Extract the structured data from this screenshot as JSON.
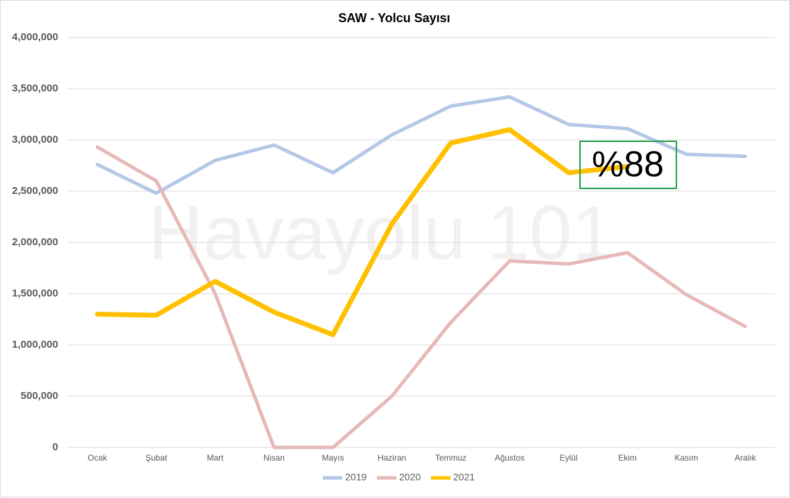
{
  "chart_data": {
    "type": "line",
    "title": "SAW - Yolcu Sayısı",
    "categories": [
      "Ocak",
      "Şubat",
      "Mart",
      "Nisan",
      "Mayıs",
      "Haziran",
      "Temmuz",
      "Ağustos",
      "Eylül",
      "Ekim",
      "Kasım",
      "Aralık"
    ],
    "series": [
      {
        "name": "2019",
        "color": "#b4c7e7",
        "values": [
          2760000,
          2480000,
          2800000,
          2950000,
          2680000,
          3050000,
          3330000,
          3420000,
          3150000,
          3110000,
          2860000,
          2840000
        ]
      },
      {
        "name": "2020",
        "color": "#e6b9b8",
        "values": [
          2930000,
          2600000,
          1500000,
          0,
          0,
          500000,
          1220000,
          1820000,
          1790000,
          1900000,
          1490000,
          1180000
        ]
      },
      {
        "name": "2021",
        "color": "#ffc000",
        "values": [
          1300000,
          1290000,
          1620000,
          1320000,
          1100000,
          2180000,
          2970000,
          3100000,
          2680000,
          2740000,
          null,
          null
        ]
      }
    ],
    "ylim": [
      0,
      4000000
    ],
    "yticks": [
      0,
      {
        "value": 500000,
        "label": "500,000"
      },
      {
        "value": 1000000,
        "label": "1,000,000"
      },
      {
        "value": 1500000,
        "label": "1,500,000"
      },
      {
        "value": 2000000,
        "label": "2,000,000"
      },
      {
        "value": 2500000,
        "label": "2,500,000"
      },
      {
        "value": 3000000,
        "label": "3,000,000"
      },
      {
        "value": 3500000,
        "label": "3,500,000"
      },
      {
        "value": 4000000,
        "label": "4,000,000"
      }
    ],
    "grid": true,
    "legend": "bottom",
    "annotations": [
      "%88"
    ],
    "watermark": "Havayolu 101"
  }
}
